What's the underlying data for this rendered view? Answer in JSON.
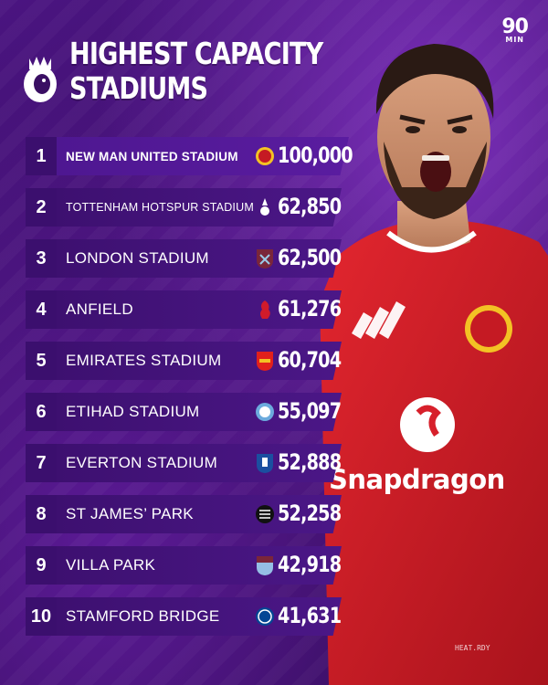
{
  "header": {
    "title_line1": "HIGHEST CAPACITY",
    "title_line2": "STADIUMS",
    "brand_top": "90",
    "brand_bottom": "MIN"
  },
  "player": {
    "sponsor": "Snapdragon",
    "kit_label": "HEAT.RDY"
  },
  "colors": {
    "background": "#3a0f63",
    "bar": "#4b1787",
    "shirt_red": "#d7202b"
  },
  "stadiums": [
    {
      "rank": "1",
      "name": "NEW MAN UNITED STADIUM",
      "capacity": "100,000",
      "crest": "man-united-crest"
    },
    {
      "rank": "2",
      "name": "TOTTENHAM HOTSPUR STADIUM",
      "capacity": "62,850",
      "crest": "tottenham-crest"
    },
    {
      "rank": "3",
      "name": "LONDON STADIUM",
      "capacity": "62,500",
      "crest": "west-ham-crest"
    },
    {
      "rank": "4",
      "name": "ANFIELD",
      "capacity": "61,276",
      "crest": "liverpool-crest"
    },
    {
      "rank": "5",
      "name": "EMIRATES STADIUM",
      "capacity": "60,704",
      "crest": "arsenal-crest"
    },
    {
      "rank": "6",
      "name": "ETIHAD STADIUM",
      "capacity": "55,097",
      "crest": "man-city-crest"
    },
    {
      "rank": "7",
      "name": "EVERTON STADIUM",
      "capacity": "52,888",
      "crest": "everton-crest"
    },
    {
      "rank": "8",
      "name": "ST JAMES’ PARK",
      "capacity": "52,258",
      "crest": "newcastle-crest"
    },
    {
      "rank": "9",
      "name": "VILLA PARK",
      "capacity": "42,918",
      "crest": "aston-villa-crest"
    },
    {
      "rank": "10",
      "name": "STAMFORD BRIDGE",
      "capacity": "41,631",
      "crest": "chelsea-crest"
    }
  ]
}
